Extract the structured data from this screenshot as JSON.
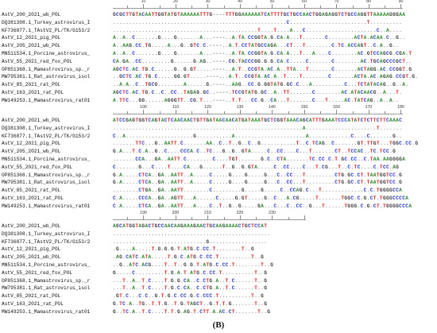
{
  "panel_label": "(B)",
  "blocks": [
    {
      "ruler_start": 1,
      "ruler_end": 90,
      "ruler_labels": [
        "10",
        "20",
        "30",
        "40",
        "50",
        "60",
        "70",
        "80",
        "90"
      ],
      "rows": [
        {
          "name": "AstV_200_2021_wb_POL",
          "seq": "GCGCTTGTACAATTGGTATGTAAAAAATTTG----TTTGGAAAAAATCATTTTGCTGCCAACTGGAGAGGTCTGCCAGGTTAAAAAGGGAA"
        },
        {
          "name": "DQ381308.1_Turkey_astrovirus_I",
          "seq": "......................................................C........................T.........."
        },
        {
          "name": "KF736877.1_TAstV2_PL/TK/G153/2",
          "seq": ".............................................T....T....A...C......................C..A...."
        },
        {
          "name": "AstV_12_2021_pig_POL",
          "seq": "A..A..C.......G....G.......A...----..A.TA.CCGGTA.G.CA.A...T.......C........ACTA.ACAA.C..G.."
        },
        {
          "name": "AstV_205_2021_wb_POL",
          "seq": "A..AAG.CC.TG.....A...G..GTC.C.----..A.T.CCTATGCCAGA...CT...T........C.TC.ACCAGT..C.A..G.."
        },
        {
          "name": "MN511534.1_Porcine_astrovirus_",
          "seq": "A..A..C.......G....G.......A...----..A.TA.CCGGTA.G.CA.A...T...A....C........AC.GTCCAGCG.CGA.T"
        },
        {
          "name": "AstV_55_2021_red_fox_POL",
          "seq": "CA.GA..CC.........G......G.AG..----.CG.TACCCGG.G.G.CA.C.....C.......C........AC.TGCAGCCCGCT.."
        },
        {
          "name": "OP851368.1_Mamastrovirus_sp._r",
          "seq": "AGCTC.AC.TG.C......G..G.GT.....----..A.T..CCGTA.AC.A..TTA...T.......C.......ACTAGG.AC.CCGGT.G"
        },
        {
          "name": "MW795381.1_Rat_astrovirus_isol",
          "seq": "..GCTC.AC.TG.C.....GG.GT.....----...A.T..CCGTA.AC.A..T....T........C.......ACTA.AC.AGAG.CCGT.G."
        },
        {
          "name": "AstV_85_2021_rat_POL",
          "seq": "..A.A..C..TGCG........A......G.----..AAG..CC.G.GGTATG.GC.C...A..........C...TCTATACAG..G..A."
        },
        {
          "name": "AstV_163_2021_rat_POL",
          "seq": "AGCTC.AC.TG.C..C..CC..TAGAG.GC..----.TCCGTATG.GC..A..TT.......C........AC.ATACAACG..A...T."
        },
        {
          "name": "MW149253.1_Mamastrovirus_rat01",
          "seq": "A.TTC...GG......AGGGTT..CG.T...----..T.T...CC.G..CA...T.......C...T.....AC.TATCAG..A..A.."
        }
      ]
    },
    {
      "ruler_start": 91,
      "ruler_end": 180,
      "ruler_labels": [
        "100",
        "110",
        "120",
        "130",
        "140",
        "150",
        "160",
        "170",
        "180"
      ],
      "rows": [
        {
          "name": "AstV_200_2021_wb_POL",
          "seq": "ATCCGAGTGGTCAGTACTCAACAACTGTTGATAACAACATGATAAATGCTCGGTAAACAGCATTTGAAATCCCATATCTCTTCTTCAAAC"
        },
        {
          "name": "DQ381308.1_Turkey_astrovirus_I",
          "seq": "...........................................................A......................T......."
        },
        {
          "name": "KF736877.1_TAstV2_PL/TK/G153/2",
          "seq": "C..A.....................G...........A......................A.............C....C.......G.."
        },
        {
          "name": "AstV_12_2021_pig_POL",
          "seq": ".......TTC...G..AATT.C.......AA..C..T..G..C..G...........T..C.TCAG..C.......GT.TTGT...TGGC.CC.G"
        },
        {
          "name": "AstV_205_2021_wb_POL",
          "seq": "G.A...T.C.A..G..C....CCCA.C..TC...G..G..GTA.....C..CC....C...T.......CT..TCCAC..TC.TCC.G"
        },
        {
          "name": "MN511534.1_Porcine_astrovirus_",
          "seq": ".......CCA...GA..AATT.C........C....TGT.......G.C..CTA.......TC.CC.C.T.GC.CC..C.TAA.AAGGGGA"
        },
        {
          "name": "AstV_55_2021_red_fox_POL",
          "seq": "C.......G...C....T....CA...G......T..G..G.GTA.....C..CC....C...T.CG...T..C.TC....C.TCC.AG"
        },
        {
          "name": "OP851368.1_Mamastrovirus_sp._r",
          "seq": "G.A.....CTCA..GA..AATT..A.....C.....G....G.....G...C..CC...T.........CTG.GC.CT.TAATGGTCC.G"
        },
        {
          "name": "MW795381.1_Rat_astrovirus_isol",
          "seq": "G.A.....CTCA..GA..AATT..A.....C.....G....G.....G...C..CC...T.........CTG.GC.CT.TAATGGTCC.G"
        },
        {
          "name": "AstV_85_2021_rat_POL",
          "seq": "........CTGA..GA..AATT........C.........G.....G.....C..CCAG.C...T.............C.C.TGGGGCCA"
        },
        {
          "name": "AstV_163_2021_rat_POL",
          "seq": "C.A.....CCCA..GA..AGTT...A......C.....G.GT.....G..C...A.CG.....T.......TGGC.C.G.CT.TGGGCCCCA"
        },
        {
          "name": "MW149253.1_Mamastrovirus_rat01",
          "seq": "C.A.....CTCA..GA..AATT...A....C..T..G..G.....GA...C...C..CC..G...T......TGGG.C.G.CT.TGGGGCCCA"
        }
      ]
    },
    {
      "ruler_start": 181,
      "ruler_end": 240,
      "ruler_labels": [
        "190",
        "200",
        "210",
        "220",
        "230"
      ],
      "rows": [
        {
          "name": "AstV_200_2021_wb_POL",
          "seq": "AGCATGGTAGACTGCCAACAAGAAAGAACTGCAAGAAAACTGCTCCAT"
        },
        {
          "name": "DQ381308.1_Turkey_astrovirus_I",
          "seq": "................................................."
        },
        {
          "name": "KF736877.1_TAstV2_PL/TK/G153/2",
          "seq": ".............................G.................."
        },
        {
          "name": "AstV_12_2021_pig_POL",
          "seq": ".G....A.....T.G.G.G.T.ATG.C.CC.T........T..G"
        },
        {
          "name": "AstV_205_2021_wb_POL",
          "seq": ".AG.CATC.ATA.....T.G.C.ATG.C.CC.T..........T..G"
        },
        {
          "name": "MN511534.1_Porcine_astrovirus_",
          "seq": "..G..ATC.ACG....T..T..G.G.T.ATG.C.CC.T........T..G"
        },
        {
          "name": "AstV_55_2021_red_fox_POL",
          "seq": "G.....C.........T.G.A.T.ATG.C.CC.T..........T..G"
        },
        {
          "name": "OP851368.1_Mamastrovirus_sp._r",
          "seq": "...T..A..T.C....T.G.G.CA..C.CTG.A..T.C......T..G"
        },
        {
          "name": "MW795381.1_Rat_astrovirus_isol",
          "seq": "...T..A..T.C....T.G.C.CA..C.CTG.A..T.C......T..G"
        },
        {
          "name": "AstV_85_2021_rat_POL",
          "seq": ".GT.C...C.C..G.T.G.C.CC.G.C.CCC.T..........T..G"
        },
        {
          "name": "AstV_163_2021_rat_POL",
          "seq": "G.TC.A..TG..T.T.G..T.G.TAGCT..G.T.T.G.......T..G"
        },
        {
          "name": "MW149253.1_Mamastrovirus_rat01",
          "seq": "G..TC.A..T.C....T.T.G.AG.T.CTT.A.AC.CT.......T..G"
        }
      ]
    }
  ]
}
